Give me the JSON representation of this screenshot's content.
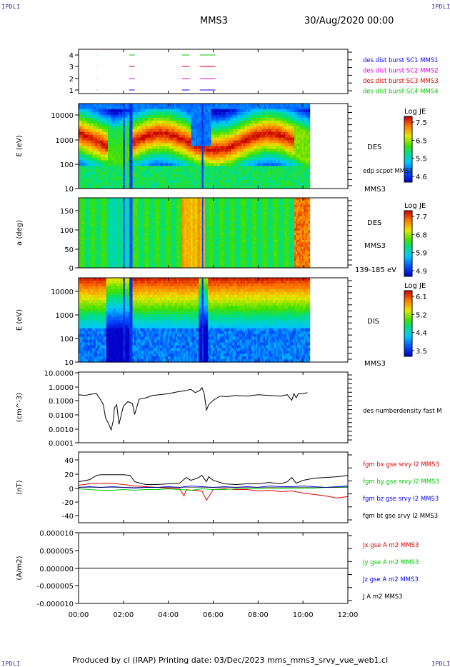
{
  "corner_label": "IPDLI",
  "header": {
    "spacecraft": "MMS3",
    "datetime": "30/Aug/2020 00:00"
  },
  "footer": {
    "text": "Produced by cl (IRAP)   Printing date: 03/Dec/2023   mms_mms3_srvy_vue_web1.cl"
  },
  "colors": {
    "blue": "#0000ff",
    "magenta": "#e000e0",
    "red": "#e00000",
    "green": "#00c800",
    "black": "#000000"
  },
  "panels": {
    "availability": {
      "ticks": [
        "4",
        "3",
        "2",
        "1"
      ],
      "legend": [
        {
          "text": "des dist burst SC1 MMS1",
          "color": "#0000ff"
        },
        {
          "text": "des dist burst SC2 MMS2",
          "color": "#e000e0"
        },
        {
          "text": "des dist burst SC3 MMS3",
          "color": "#e00000"
        },
        {
          "text": "des dist burst SC4 MMS4",
          "color": "#00c800"
        }
      ]
    },
    "des_energy": {
      "ylabel": "E (eV)",
      "yticks": [
        "10000",
        "1000",
        "100",
        "10"
      ],
      "right_labels": [
        "DES",
        "edp scpot MMS3",
        "MMS3"
      ],
      "colorbar": {
        "title": "Log JE",
        "ticks": [
          "7.5",
          "6.5",
          "5.5",
          "4.6"
        ]
      }
    },
    "des_pitch": {
      "ylabel": "a (deg)",
      "yticks": [
        "150",
        "100",
        "50",
        "0"
      ],
      "right_labels": [
        "DES",
        "MMS3",
        "139-185 eV"
      ],
      "colorbar": {
        "title": "Log JE",
        "ticks": [
          "7.7",
          "6.8",
          "5.9",
          "4.9"
        ]
      }
    },
    "dis_energy": {
      "ylabel": "E (eV)",
      "yticks": [
        "10000",
        "1000",
        "100",
        "10"
      ],
      "right_labels": [
        "DIS",
        "MMS3"
      ],
      "colorbar": {
        "title": "Log JE",
        "ticks": [
          "6.1",
          "5.2",
          "4.4",
          "3.5"
        ]
      }
    },
    "density": {
      "ylabel": "(cm^-3)",
      "yticks": [
        "10.0000",
        "1.0000",
        "0.1000",
        "0.0100",
        "0.0010",
        "0.0001"
      ],
      "legend": [
        {
          "text": "des numberdensity fast M",
          "color": "#000000"
        }
      ]
    },
    "bfield": {
      "ylabel": "(nT)",
      "yticks": [
        "40",
        "20",
        "0",
        "-20",
        "-40"
      ],
      "legend": [
        {
          "text": "fgm bx gse srvy l2 MMS3",
          "color": "#e00000"
        },
        {
          "text": "fgm by gse srvy l2 MMS3",
          "color": "#00c800"
        },
        {
          "text": "fgm bz gse srvy l2 MMS3",
          "color": "#0000ff"
        },
        {
          "text": "fgm bt gse srvy l2 MMS3",
          "color": "#000000"
        }
      ]
    },
    "current": {
      "ylabel": "(A/m2)",
      "yticks": [
        "0.000010",
        "0.000005",
        "0.000000",
        "-0.000005",
        "-0.000010"
      ],
      "legend": [
        {
          "text": "Jx gse A m2 MMS3",
          "color": "#e00000"
        },
        {
          "text": "Jy gse A m2 MMS3",
          "color": "#00c800"
        },
        {
          "text": "Jz gse A m2 MMS3",
          "color": "#0000ff"
        },
        {
          "text": "J A m2 MMS3",
          "color": "#000000"
        }
      ]
    }
  },
  "xaxis": {
    "ticks": [
      "00:00",
      "02:00",
      "04:00",
      "06:00",
      "08:00",
      "10:00",
      "12:00"
    ]
  },
  "chart_data": [
    {
      "type": "line",
      "panel": "density",
      "x_unit": "hours since 00:00",
      "xlim": [
        0,
        12
      ],
      "ylog": true,
      "ylim": [
        0.0001,
        10
      ],
      "series": [
        {
          "color": "#000000",
          "x": [
            0,
            0.3,
            0.6,
            0.8,
            1.0,
            1.1,
            1.2,
            1.35,
            1.45,
            1.55,
            1.6,
            1.7,
            1.8,
            2.0,
            2.2,
            2.4,
            2.5,
            2.7,
            3.0,
            3.3,
            3.6,
            4.0,
            4.4,
            4.8,
            5.0,
            5.2,
            5.4,
            5.5,
            5.6,
            5.7,
            5.8,
            6.0,
            6.3,
            6.6,
            7.0,
            7.5,
            8.0,
            8.5,
            9.0,
            9.3,
            9.5,
            9.6,
            9.7,
            9.8,
            10.0,
            10.2
          ],
          "y": [
            0.25,
            0.22,
            0.28,
            0.3,
            0.1,
            0.05,
            0.006,
            0.002,
            0.0008,
            0.004,
            0.03,
            0.05,
            0.002,
            0.04,
            0.08,
            0.06,
            0.01,
            0.12,
            0.15,
            0.22,
            0.25,
            0.3,
            0.4,
            0.5,
            0.6,
            0.35,
            0.5,
            0.8,
            0.3,
            0.02,
            0.05,
            0.1,
            0.2,
            0.18,
            0.22,
            0.2,
            0.25,
            0.22,
            0.2,
            0.25,
            0.1,
            0.3,
            0.15,
            0.3,
            0.3,
            0.35
          ]
        }
      ]
    },
    {
      "type": "line",
      "panel": "bfield",
      "x_unit": "hours since 00:00",
      "xlim": [
        0,
        12
      ],
      "ylim": [
        -50,
        50
      ],
      "series": [
        {
          "name": "fgm bx gse srvy l2 MMS3",
          "color": "#e00000",
          "x": [
            0,
            0.5,
            1.0,
            1.5,
            2.0,
            2.5,
            3.0,
            3.5,
            4.0,
            4.5,
            4.7,
            4.8,
            5.0,
            5.5,
            5.7,
            6.0,
            6.5,
            7.0,
            7.5,
            8.0,
            8.5,
            9.0,
            9.5,
            10.0,
            10.5,
            11.0,
            11.5,
            12.0
          ],
          "y": [
            3,
            5,
            6,
            6,
            4,
            2,
            1,
            0,
            -1,
            -2,
            -12,
            -3,
            -4,
            -5,
            -18,
            -3,
            -2,
            -3,
            -3,
            -5,
            -4,
            -6,
            -5,
            -8,
            -10,
            -12,
            -15,
            -13
          ]
        },
        {
          "name": "fgm by gse srvy l2 MMS3",
          "color": "#00c800",
          "x": [
            0,
            0.5,
            1.0,
            1.5,
            2.0,
            2.5,
            3.0,
            3.5,
            4.0,
            4.5,
            5.0,
            5.5,
            6.0,
            6.5,
            7.0,
            7.5,
            8.0,
            8.5,
            9.0,
            9.5,
            10.0,
            10.5,
            11.0,
            11.5,
            12.0
          ],
          "y": [
            -2,
            -3,
            -4,
            -4,
            -3,
            -4,
            -3,
            -3,
            -2,
            -3,
            -4,
            -2,
            -3,
            -3,
            -2,
            -2,
            -2,
            -1,
            -2,
            -1,
            -1,
            -1,
            0,
            0,
            1
          ]
        },
        {
          "name": "fgm bz gse srvy l2 MMS3",
          "color": "#0000ff",
          "x": [
            0,
            0.5,
            1.0,
            1.5,
            2.0,
            2.5,
            3.0,
            3.5,
            4.0,
            4.5,
            5.0,
            5.5,
            6.0,
            6.5,
            7.0,
            7.5,
            8.0,
            8.5,
            9.0,
            9.5,
            10.0,
            10.5,
            11.0,
            11.5,
            12.0
          ],
          "y": [
            0,
            1,
            0,
            1,
            0,
            -1,
            0,
            0,
            1,
            0,
            2,
            1,
            0,
            1,
            0,
            1,
            0,
            2,
            1,
            1,
            2,
            1,
            0,
            1,
            2
          ]
        },
        {
          "name": "fgm bt gse srvy l2 MMS3",
          "color": "#000000",
          "x": [
            0,
            0.5,
            0.8,
            1.0,
            1.5,
            2.0,
            2.3,
            2.5,
            3.0,
            3.5,
            4.0,
            4.5,
            4.8,
            5.0,
            5.3,
            5.5,
            5.7,
            5.8,
            6.0,
            6.5,
            7.0,
            7.5,
            8.0,
            8.5,
            9.0,
            9.3,
            9.5,
            9.7,
            10.0,
            10.5,
            11.0,
            11.5,
            12.0
          ],
          "y": [
            8,
            11,
            17,
            18,
            18,
            18,
            17,
            8,
            4,
            4,
            5,
            6,
            14,
            10,
            13,
            17,
            8,
            15,
            10,
            5,
            4,
            5,
            5,
            7,
            5,
            8,
            14,
            6,
            10,
            13,
            14,
            15,
            17
          ]
        }
      ]
    },
    {
      "type": "line",
      "panel": "current",
      "x_unit": "hours since 00:00",
      "xlim": [
        0,
        12
      ],
      "ylim": [
        -1e-05,
        1e-05
      ],
      "series": [
        {
          "name": "J A m2 MMS3",
          "color": "#000000",
          "x": [
            0,
            12
          ],
          "y": [
            0,
            0
          ]
        }
      ]
    }
  ]
}
